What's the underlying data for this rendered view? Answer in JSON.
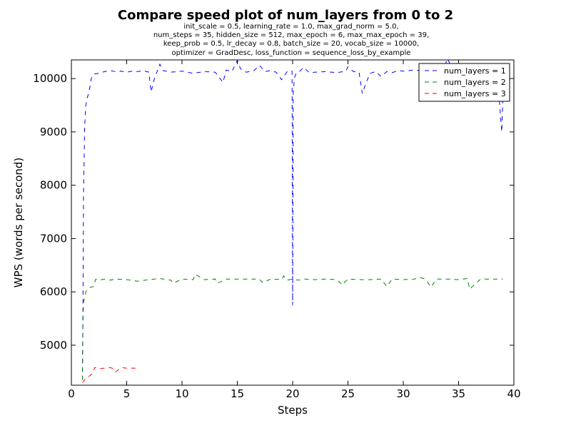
{
  "chart_data": {
    "type": "line",
    "title": "Compare speed plot of num_layers from 0 to 2",
    "subtitle_lines": [
      "init_scale = 0.5, learning_rate = 1.0, max_grad_norm = 5.0,",
      "num_steps = 35, hidden_size = 512, max_epoch = 6, max_max_epoch = 39,",
      "keep_prob = 0.5, lr_decay = 0.8, batch_size = 20, vocab_size = 10000,",
      "optimizer = GradDesc, loss_function = sequence_loss_by_example"
    ],
    "xlabel": "Steps",
    "ylabel": "WPS (words per second)",
    "xlim": [
      0,
      40
    ],
    "ylim": [
      4250,
      10350
    ],
    "x_ticks": [
      0,
      5,
      10,
      15,
      20,
      25,
      30,
      35,
      40
    ],
    "y_ticks": [
      5000,
      6000,
      7000,
      8000,
      9000,
      10000
    ],
    "grid": false,
    "legend_position": "top-right",
    "series": [
      {
        "name": "num_layers = 1",
        "color": "#0000ff",
        "x": [
          1.0,
          1.05,
          1.1,
          1.2,
          1.3,
          1.45,
          1.6,
          1.8,
          2.0,
          2.2,
          2.5,
          2.8,
          3.0,
          3.5,
          4.0,
          4.5,
          5.0,
          5.5,
          6.0,
          6.5,
          7.0,
          7.2,
          7.5,
          8.0,
          8.3,
          9.0,
          10.0,
          11.0,
          12.0,
          13.0,
          13.7,
          14.0,
          14.5,
          15.0,
          15.3,
          15.8,
          16.5,
          17.0,
          17.5,
          18.0,
          18.5,
          19.0,
          19.5,
          19.95,
          20.0,
          20.05,
          20.15,
          20.3,
          20.6,
          21.0,
          21.5,
          22.0,
          23.0,
          24.0,
          24.8,
          25.0,
          25.5,
          26.0,
          26.3,
          26.6,
          27.0,
          27.5,
          28.0,
          28.5,
          29.0,
          29.5,
          30.0,
          31.0,
          32.0,
          33.0,
          33.5,
          34.0,
          34.5,
          35.0,
          36.0,
          37.0,
          38.0,
          38.5,
          38.9,
          39.0,
          39.2,
          39.5
        ],
        "y": [
          4500,
          5800,
          7800,
          9100,
          9500,
          9650,
          9750,
          10000,
          10080,
          10090,
          10100,
          10120,
          10130,
          10150,
          10130,
          10140,
          10120,
          10140,
          10130,
          10150,
          10120,
          9750,
          10000,
          10270,
          10150,
          10120,
          10140,
          10100,
          10130,
          10120,
          9930,
          10160,
          10130,
          10340,
          10180,
          10120,
          10150,
          10250,
          10130,
          10150,
          10120,
          9980,
          10130,
          10140,
          5750,
          9700,
          10000,
          10100,
          10130,
          10210,
          10110,
          10120,
          10130,
          10110,
          10140,
          10220,
          10130,
          10120,
          9720,
          9900,
          10100,
          10130,
          10040,
          10130,
          10110,
          10150,
          10140,
          10160,
          10140,
          10150,
          10100,
          10380,
          10130,
          10140,
          10120,
          10110,
          10130,
          10110,
          9000,
          9600,
          9950,
          9900
        ]
      },
      {
        "name": "num_layers = 2",
        "color": "#008000",
        "x": [
          1.0,
          1.05,
          1.1,
          1.3,
          1.6,
          2.0,
          2.2,
          2.5,
          3.0,
          3.5,
          4.0,
          5.0,
          6.0,
          7.0,
          8.0,
          9.0,
          9.2,
          10.0,
          11.0,
          11.2,
          12.0,
          13.0,
          13.2,
          14.0,
          15.0,
          16.0,
          17.0,
          17.3,
          18.0,
          19.0,
          19.2,
          19.5,
          20.0,
          20.5,
          21.0,
          22.0,
          23.0,
          24.0,
          24.5,
          24.7,
          25.0,
          26.0,
          27.0,
          28.0,
          28.5,
          29.0,
          30.0,
          31.0,
          31.5,
          32.0,
          32.5,
          33.0,
          34.0,
          35.0,
          35.8,
          36.0,
          36.5,
          37.0,
          38.0,
          39.0
        ],
        "y": [
          4350,
          5500,
          5800,
          6000,
          6080,
          6100,
          6240,
          6220,
          6240,
          6220,
          6240,
          6230,
          6200,
          6230,
          6250,
          6220,
          6160,
          6240,
          6230,
          6330,
          6230,
          6240,
          6160,
          6240,
          6240,
          6240,
          6240,
          6170,
          6240,
          6230,
          6300,
          6220,
          6240,
          6220,
          6240,
          6230,
          6240,
          6230,
          6130,
          6180,
          6240,
          6230,
          6230,
          6240,
          6100,
          6240,
          6230,
          6240,
          6270,
          6240,
          6090,
          6240,
          6240,
          6230,
          6250,
          6050,
          6150,
          6240,
          6240,
          6240
        ]
      },
      {
        "name": "num_layers = 3",
        "color": "#ff0000",
        "x": [
          1.0,
          1.2,
          1.5,
          1.8,
          2.0,
          2.1,
          2.5,
          3.0,
          3.5,
          3.8,
          4.0,
          4.5,
          5.0,
          5.5,
          5.8
        ],
        "y": [
          4300,
          4350,
          4400,
          4450,
          4500,
          4580,
          4560,
          4570,
          4580,
          4560,
          4500,
          4580,
          4570,
          4570,
          4570
        ]
      }
    ]
  }
}
